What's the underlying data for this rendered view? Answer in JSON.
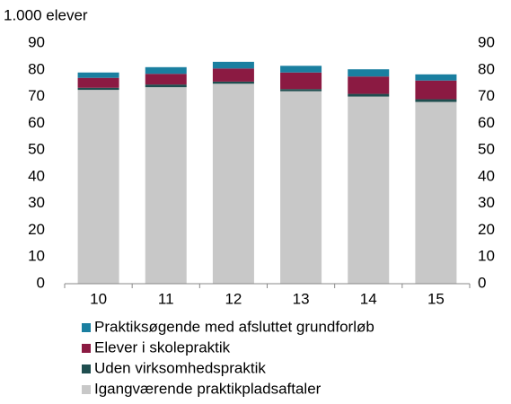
{
  "chart_data": {
    "type": "bar",
    "stacked": true,
    "y_label": "1.000 elever",
    "categories": [
      "10",
      "11",
      "12",
      "13",
      "14",
      "15"
    ],
    "series": [
      {
        "name": "Igangværende praktikpladsaftaler",
        "color": "#c8c8c8",
        "values": [
          72.5,
          73.5,
          74.8,
          72,
          70,
          68
        ]
      },
      {
        "name": "Uden virksomhedspraktik",
        "color": "#1f4e4f",
        "values": [
          0.8,
          1.0,
          0.8,
          0.8,
          1.0,
          1.0
        ]
      },
      {
        "name": "Elever i skolepraktik",
        "color": "#8b1a42",
        "values": [
          3.7,
          4.0,
          4.9,
          6.2,
          6.5,
          7.0
        ]
      },
      {
        "name": "Praktiksøgende med afsluttet grundforløb",
        "color": "#1a7fa0",
        "values": [
          2.0,
          2.5,
          2.5,
          2.5,
          2.7,
          2.3
        ]
      }
    ],
    "ylim": [
      0,
      90
    ],
    "yticks": [
      0,
      10,
      20,
      30,
      40,
      50,
      60,
      70,
      80,
      90
    ],
    "y2lim": [
      0,
      90
    ],
    "y2ticks": [
      0,
      10,
      20,
      30,
      40,
      50,
      60,
      70,
      80,
      90
    ],
    "legend": "bottom"
  }
}
